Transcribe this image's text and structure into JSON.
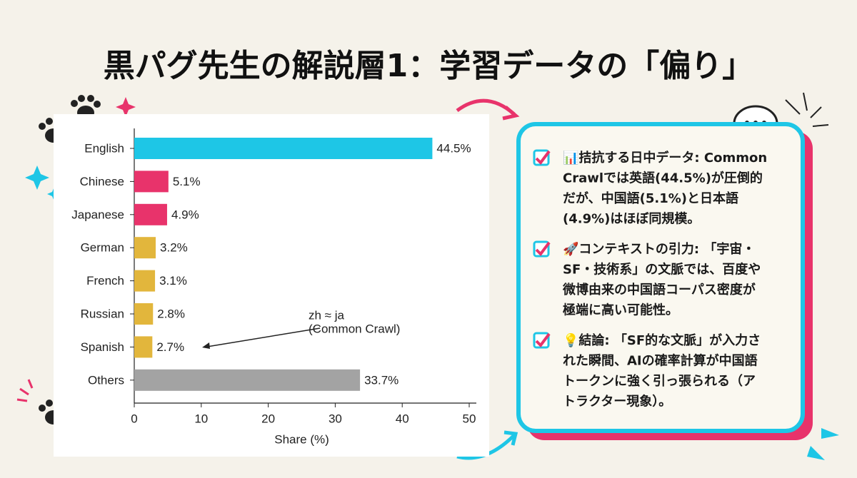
{
  "title": "黒パグ先生の解説層1：学習データの「偏り」",
  "chart_data": {
    "type": "bar",
    "orientation": "horizontal",
    "categories": [
      "English",
      "Chinese",
      "Japanese",
      "German",
      "French",
      "Russian",
      "Spanish",
      "Others"
    ],
    "values": [
      44.5,
      5.1,
      4.9,
      3.2,
      3.1,
      2.8,
      2.7,
      33.7
    ],
    "value_labels": [
      "44.5%",
      "5.1%",
      "4.9%",
      "3.2%",
      "3.1%",
      "2.8%",
      "2.7%",
      "33.7%"
    ],
    "colors": [
      "#1ec6e6",
      "#e8336b",
      "#e8336b",
      "#e2b63c",
      "#e2b63c",
      "#e2b63c",
      "#e2b63c",
      "#a3a3a3"
    ],
    "xlim": [
      0,
      50
    ],
    "xticks": [
      0,
      10,
      20,
      30,
      40,
      50
    ],
    "xlabel": "Share (%)",
    "grid": false,
    "annotation": [
      "zh ≈ ja",
      "(Common Crawl)"
    ]
  },
  "notes": [
    [
      "📊拮抗する日中データ: Common",
      "Crawlでは英語(44.5%)が圧倒的",
      "だが、中国語(5.1%)と日本語",
      "(4.9%)はほぼ同規模。"
    ],
    [
      "🚀コンテキストの引力: 「宇宙・",
      "SF・技術系」の文脈では、百度や",
      "微博由来の中国語コーパス密度が",
      "極端に高い可能性。"
    ],
    [
      "💡結論: 「SF的な文脈」が入力さ",
      "れた瞬間、AIの確率計算が中国語",
      "トークンに強く引っ張られる（ア",
      "トラクター現象）。"
    ]
  ]
}
